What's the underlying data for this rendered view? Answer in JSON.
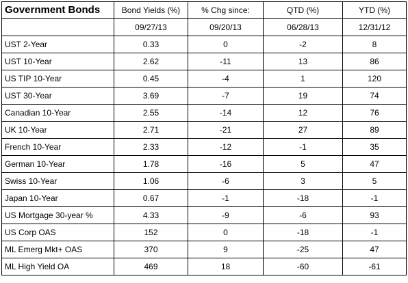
{
  "table": {
    "title": "Government Bonds",
    "headers": [
      "Bond Yields (%)",
      "% Chg since:",
      "QTD (%)",
      "YTD (%)"
    ],
    "dates": [
      "09/27/13",
      "09/20/13",
      "06/28/13",
      "12/31/12"
    ],
    "rows": [
      {
        "name": "UST 2-Year",
        "values": [
          "0.33",
          "0",
          "-2",
          "8"
        ]
      },
      {
        "name": "UST 10-Year",
        "values": [
          "2.62",
          "-11",
          "13",
          "86"
        ]
      },
      {
        "name": "US TIP 10-Year",
        "values": [
          "0.45",
          "-4",
          "1",
          "120"
        ]
      },
      {
        "name": "UST 30-Year",
        "values": [
          "3.69",
          "-7",
          "19",
          "74"
        ]
      },
      {
        "name": "Canadian 10-Year",
        "values": [
          "2.55",
          "-14",
          "12",
          "76"
        ]
      },
      {
        "name": "UK 10-Year",
        "values": [
          "2.71",
          "-21",
          "27",
          "89"
        ]
      },
      {
        "name": "French 10-Year",
        "values": [
          "2.33",
          "-12",
          "-1",
          "35"
        ]
      },
      {
        "name": "German 10-Year",
        "values": [
          "1.78",
          "-16",
          "5",
          "47"
        ]
      },
      {
        "name": "Swiss 10-Year",
        "values": [
          "1.06",
          "-6",
          "3",
          "5"
        ]
      },
      {
        "name": "Japan 10-Year",
        "values": [
          "0.67",
          "-1",
          "-18",
          "-1"
        ]
      },
      {
        "name": "US Mortgage 30-year %",
        "values": [
          "4.33",
          "-9",
          "-6",
          "93"
        ]
      },
      {
        "name": "US Corp OAS",
        "values": [
          "152",
          "0",
          "-18",
          "-1"
        ]
      },
      {
        "name": "ML Emerg Mkt+ OAS",
        "values": [
          "370",
          "9",
          "-25",
          "47"
        ]
      },
      {
        "name": "ML High Yield OA",
        "values": [
          "469",
          "18",
          "-60",
          "-61"
        ]
      }
    ]
  }
}
